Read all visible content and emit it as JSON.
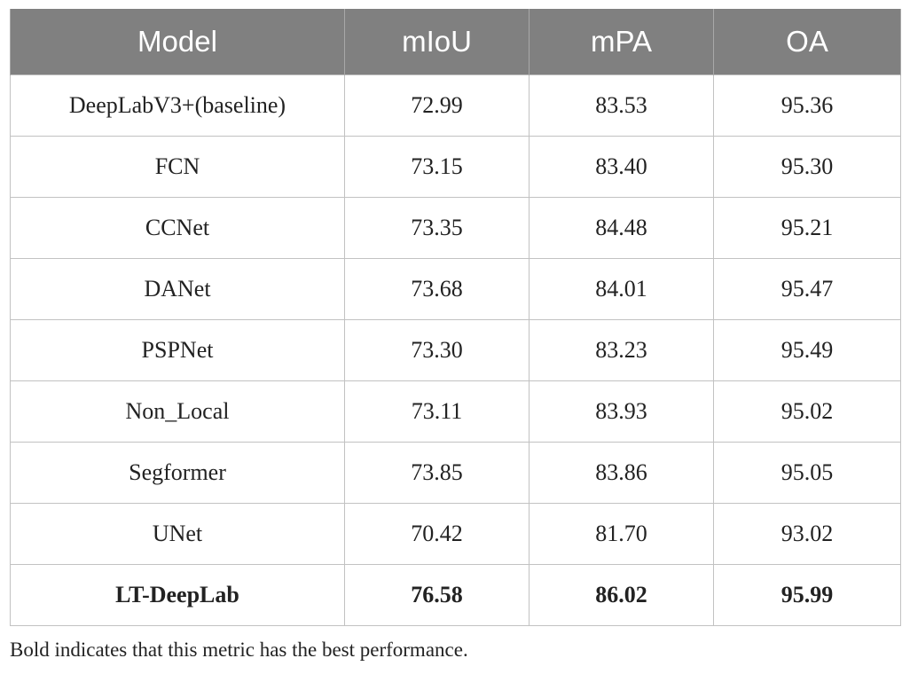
{
  "table": {
    "headers": [
      "Model",
      "mIoU",
      "mPA",
      "OA"
    ],
    "rows": [
      {
        "model": "DeepLabV3+(baseline)",
        "miou": "72.99",
        "mpa": "83.53",
        "oa": "95.36"
      },
      {
        "model": "FCN",
        "miou": "73.15",
        "mpa": "83.40",
        "oa": "95.30"
      },
      {
        "model": "CCNet",
        "miou": "73.35",
        "mpa": "84.48",
        "oa": "95.21"
      },
      {
        "model": "DANet",
        "miou": "73.68",
        "mpa": "84.01",
        "oa": "95.47"
      },
      {
        "model": "PSPNet",
        "miou": "73.30",
        "mpa": "83.23",
        "oa": "95.49"
      },
      {
        "model": "Non_Local",
        "miou": "73.11",
        "mpa": "83.93",
        "oa": "95.02"
      },
      {
        "model": "Segformer",
        "miou": "73.85",
        "mpa": "83.86",
        "oa": "95.05"
      },
      {
        "model": "UNet",
        "miou": "70.42",
        "mpa": "81.70",
        "oa": "93.02"
      },
      {
        "model": "LT-DeepLab",
        "miou": "76.58",
        "mpa": "86.02",
        "oa": "95.99"
      }
    ]
  },
  "footnote": "Bold indicates that this metric has the best performance.",
  "colors": {
    "header_bg": "#808080",
    "header_text": "#ffffff",
    "border": "#c2c2c2"
  }
}
